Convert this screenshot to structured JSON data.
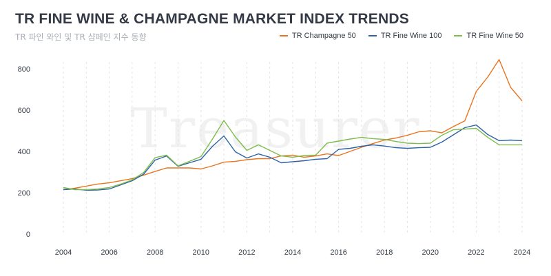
{
  "header": {
    "title": "TR FINE WINE & CHAMPAGNE MARKET INDEX TRENDS",
    "subtitle": "TR 파인 와인 및 TR 샴페인 지수 동향"
  },
  "watermark": {
    "text": "Treasurer"
  },
  "colors": {
    "champagne": "#e8741e",
    "finewine100": "#2d63a6",
    "finewine50": "#7cbd4b"
  },
  "chart_data": {
    "type": "line",
    "title": "TR FINE WINE & CHAMPAGNE MARKET INDEX TRENDS",
    "subtitle": "TR 파인 와인 및 TR 샴페인 지수 동향",
    "xlabel": "",
    "ylabel": "",
    "xlim": [
      2004,
      2024
    ],
    "ylim": [
      0,
      850
    ],
    "x_ticks": [
      2004,
      2006,
      2008,
      2010,
      2012,
      2014,
      2016,
      2018,
      2020,
      2022,
      2024
    ],
    "y_ticks": [
      0,
      200,
      400,
      600,
      800
    ],
    "grid": "vertical dashed",
    "legend_position": "top-right",
    "series": [
      {
        "name": "TR Champagne 50",
        "color": "#e8741e",
        "x": [
          2004,
          2004.5,
          2005,
          2005.5,
          2006,
          2006.5,
          2007,
          2007.5,
          2008,
          2008.5,
          2009,
          2009.5,
          2010,
          2010.5,
          2011,
          2011.5,
          2012,
          2012.5,
          2013,
          2013.5,
          2014,
          2014.5,
          2015,
          2015.5,
          2016,
          2016.5,
          2017,
          2017.5,
          2018,
          2018.5,
          2019,
          2019.5,
          2020,
          2020.5,
          2021,
          2021.5,
          2022,
          2022.5,
          2023,
          2023.5,
          2024
        ],
        "y": [
          215,
          222,
          232,
          242,
          248,
          258,
          268,
          285,
          303,
          320,
          320,
          320,
          315,
          330,
          348,
          352,
          360,
          365,
          365,
          378,
          382,
          372,
          378,
          388,
          380,
          400,
          420,
          438,
          455,
          465,
          478,
          495,
          500,
          490,
          520,
          548,
          690,
          760,
          845,
          710,
          645
        ]
      },
      {
        "name": "TR Fine Wine 100",
        "color": "#2d63a6",
        "x": [
          2004,
          2004.5,
          2005,
          2005.5,
          2006,
          2006.5,
          2007,
          2007.5,
          2008,
          2008.5,
          2009,
          2009.5,
          2010,
          2010.5,
          2011,
          2011.5,
          2012,
          2012.5,
          2013,
          2013.5,
          2014,
          2014.5,
          2015,
          2015.5,
          2016,
          2016.5,
          2017,
          2017.5,
          2018,
          2018.5,
          2019,
          2019.5,
          2020,
          2020.5,
          2021,
          2021.5,
          2022,
          2022.5,
          2023,
          2023.5,
          2024
        ],
        "y": [
          215,
          218,
          212,
          213,
          218,
          238,
          258,
          290,
          358,
          378,
          328,
          345,
          362,
          425,
          475,
          398,
          368,
          388,
          372,
          345,
          350,
          355,
          362,
          365,
          410,
          415,
          425,
          432,
          426,
          418,
          415,
          418,
          420,
          445,
          480,
          515,
          528,
          482,
          452,
          455,
          452
        ]
      },
      {
        "name": "TR Fine Wine 50",
        "color": "#7cbd4b",
        "x": [
          2004,
          2004.5,
          2005,
          2005.5,
          2006,
          2006.5,
          2007,
          2007.5,
          2008,
          2008.5,
          2009,
          2009.5,
          2010,
          2010.5,
          2011,
          2011.5,
          2012,
          2012.5,
          2013,
          2013.5,
          2014,
          2014.5,
          2015,
          2015.5,
          2016,
          2016.5,
          2017,
          2017.5,
          2018,
          2018.5,
          2019,
          2019.5,
          2020,
          2020.5,
          2021,
          2021.5,
          2022,
          2022.5,
          2023,
          2023.5,
          2024
        ],
        "y": [
          225,
          215,
          215,
          218,
          225,
          242,
          262,
          298,
          370,
          382,
          330,
          352,
          375,
          460,
          550,
          470,
          405,
          432,
          405,
          378,
          372,
          380,
          382,
          440,
          450,
          460,
          468,
          462,
          458,
          448,
          440,
          438,
          440,
          478,
          505,
          508,
          512,
          468,
          432,
          432,
          432
        ]
      }
    ]
  }
}
